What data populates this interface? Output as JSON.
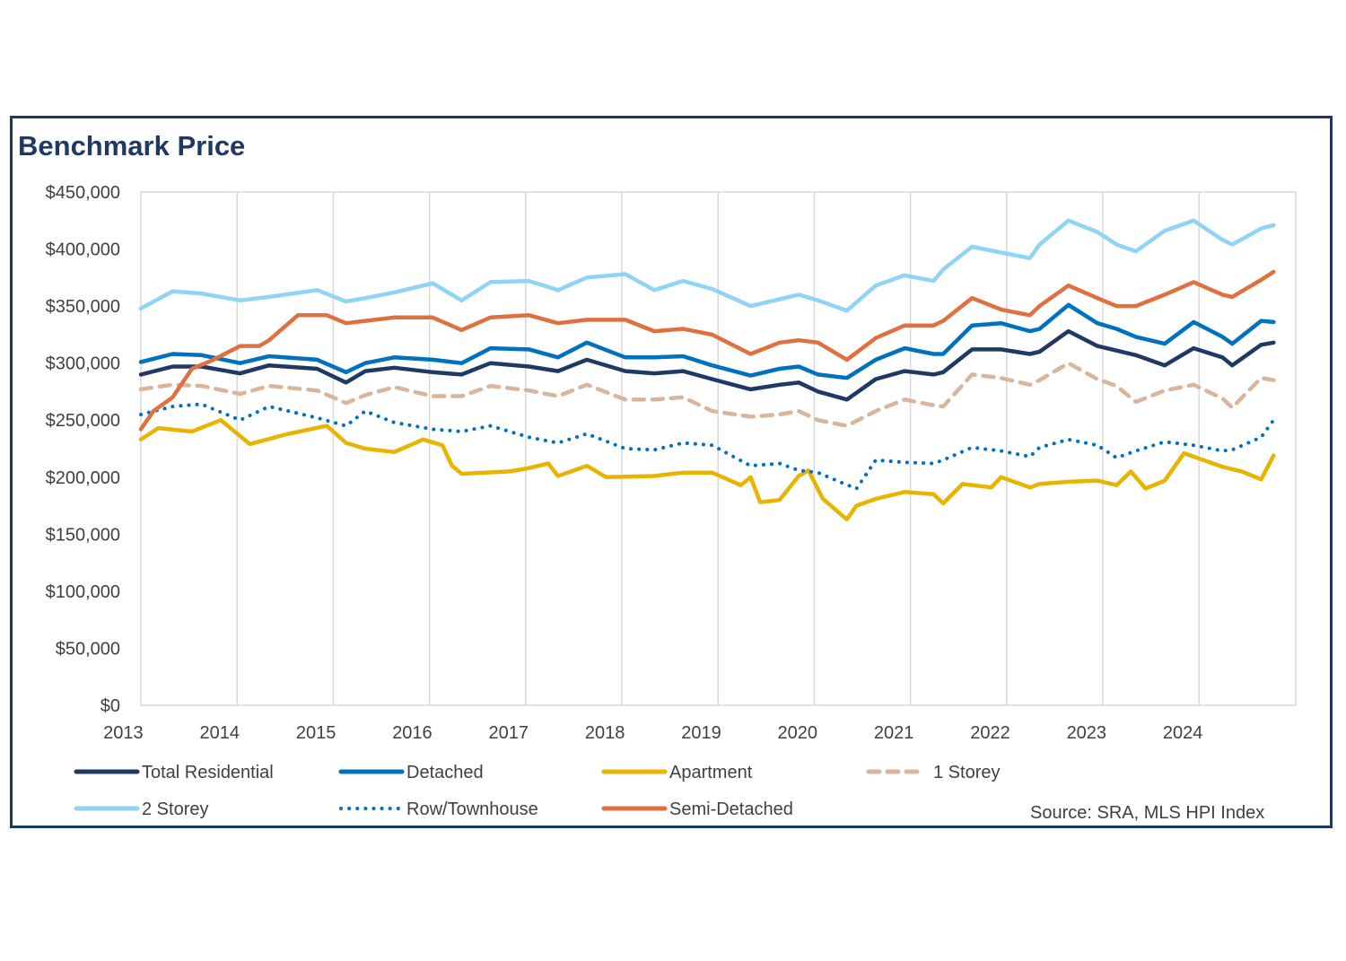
{
  "chart_data": {
    "type": "line",
    "title": "Benchmark Price",
    "xlabel": "",
    "ylabel": "",
    "ylim": [
      0,
      450000
    ],
    "xlim": [
      2012.67,
      2024.66
    ],
    "y_ticks": [
      0,
      50000,
      100000,
      150000,
      200000,
      250000,
      300000,
      350000,
      400000,
      450000
    ],
    "y_tick_labels": [
      "$0",
      "$50,000",
      "$100,000",
      "$150,000",
      "$200,000",
      "$250,000",
      "$300,000",
      "$350,000",
      "$400,000",
      "$450,000"
    ],
    "x_tick_labels": [
      "2013",
      "2014",
      "2015",
      "2016",
      "2017",
      "2018",
      "2019",
      "2020",
      "2021",
      "2022",
      "2023",
      "2024"
    ],
    "x_tick_positions": [
      2013,
      2014,
      2015,
      2016,
      2017,
      2018,
      2019,
      2020,
      2021,
      2022,
      2023,
      2024
    ],
    "gridlines": "vertical at each year boundary",
    "legend_position": "bottom",
    "source": "Source: SRA, MLS HPI Index",
    "series": [
      {
        "name": "Total Residential",
        "color": "#1f3864",
        "style": "solid",
        "x": [
          2012.67,
          2013.0,
          2013.3,
          2013.7,
          2014.0,
          2014.5,
          2014.8,
          2015.0,
          2015.3,
          2015.7,
          2016.0,
          2016.3,
          2016.7,
          2017.0,
          2017.3,
          2017.7,
          2018.0,
          2018.3,
          2018.6,
          2019.0,
          2019.3,
          2019.5,
          2019.7,
          2020.0,
          2020.3,
          2020.6,
          2020.9,
          2021.0,
          2021.3,
          2021.6,
          2021.9,
          2022.0,
          2022.3,
          2022.6,
          2022.8,
          2023.0,
          2023.3,
          2023.6,
          2023.9,
          2024.0,
          2024.3,
          2024.43
        ],
        "values": [
          290000,
          297000,
          297000,
          291000,
          298000,
          295000,
          283000,
          293000,
          296000,
          292000,
          290000,
          300000,
          297000,
          293000,
          303000,
          293000,
          291000,
          293000,
          286000,
          277000,
          281000,
          283000,
          275000,
          268000,
          286000,
          293000,
          290000,
          292000,
          312000,
          312000,
          308000,
          310000,
          328000,
          315000,
          311000,
          307000,
          298000,
          313000,
          305000,
          298000,
          316000,
          318000
        ]
      },
      {
        "name": "Detached",
        "color": "#0070c0",
        "style": "solid",
        "x": [
          2012.67,
          2013.0,
          2013.3,
          2013.7,
          2014.0,
          2014.5,
          2014.8,
          2015.0,
          2015.3,
          2015.7,
          2016.0,
          2016.3,
          2016.7,
          2017.0,
          2017.3,
          2017.7,
          2018.0,
          2018.3,
          2018.6,
          2019.0,
          2019.3,
          2019.5,
          2019.7,
          2020.0,
          2020.3,
          2020.6,
          2020.9,
          2021.0,
          2021.3,
          2021.6,
          2021.9,
          2022.0,
          2022.3,
          2022.6,
          2022.8,
          2023.0,
          2023.3,
          2023.6,
          2023.9,
          2024.0,
          2024.3,
          2024.43
        ],
        "values": [
          301000,
          308000,
          307000,
          300000,
          306000,
          303000,
          292000,
          300000,
          305000,
          303000,
          300000,
          313000,
          312000,
          305000,
          318000,
          305000,
          305000,
          306000,
          298000,
          289000,
          295000,
          297000,
          290000,
          287000,
          303000,
          313000,
          308000,
          308000,
          333000,
          335000,
          328000,
          330000,
          351000,
          335000,
          330000,
          323000,
          317000,
          336000,
          323000,
          317000,
          337000,
          336000
        ]
      },
      {
        "name": "Apartment",
        "color": "#e8b400",
        "style": "solid",
        "x": [
          2012.67,
          2012.85,
          2013.2,
          2013.5,
          2013.8,
          2014.2,
          2014.6,
          2014.8,
          2015.0,
          2015.3,
          2015.6,
          2015.8,
          2015.9,
          2016.0,
          2016.5,
          2016.7,
          2016.9,
          2017.0,
          2017.3,
          2017.5,
          2018.0,
          2018.3,
          2018.6,
          2018.9,
          2019.0,
          2019.1,
          2019.3,
          2019.5,
          2019.6,
          2019.75,
          2020.0,
          2020.1,
          2020.3,
          2020.6,
          2020.9,
          2021.0,
          2021.2,
          2021.5,
          2021.6,
          2021.9,
          2022.0,
          2022.3,
          2022.6,
          2022.8,
          2022.95,
          2023.1,
          2023.3,
          2023.5,
          2023.9,
          2024.1,
          2024.3,
          2024.43
        ],
        "values": [
          233000,
          243000,
          240000,
          250000,
          229000,
          238000,
          245000,
          230000,
          225000,
          222000,
          233000,
          228000,
          210000,
          203000,
          205000,
          208000,
          212000,
          201000,
          210000,
          200000,
          201000,
          204000,
          204000,
          193000,
          200000,
          178000,
          180000,
          201000,
          206000,
          181000,
          163000,
          175000,
          181000,
          187000,
          185000,
          177000,
          194000,
          191000,
          200000,
          191000,
          194000,
          196000,
          197000,
          193000,
          205000,
          190000,
          197000,
          221000,
          209000,
          205000,
          198000,
          219000
        ]
      },
      {
        "name": "1 Storey",
        "color": "#d9b59d",
        "style": "dashed",
        "x": [
          2012.67,
          2013.0,
          2013.3,
          2013.7,
          2014.0,
          2014.5,
          2014.8,
          2015.0,
          2015.3,
          2015.7,
          2016.0,
          2016.3,
          2016.7,
          2017.0,
          2017.3,
          2017.7,
          2018.0,
          2018.3,
          2018.6,
          2019.0,
          2019.3,
          2019.5,
          2019.7,
          2020.0,
          2020.3,
          2020.6,
          2020.9,
          2021.0,
          2021.3,
          2021.6,
          2021.9,
          2022.0,
          2022.3,
          2022.6,
          2022.8,
          2023.0,
          2023.3,
          2023.6,
          2023.9,
          2024.0,
          2024.3,
          2024.43
        ],
        "values": [
          277000,
          281000,
          280000,
          273000,
          280000,
          276000,
          265000,
          272000,
          279000,
          271000,
          271000,
          280000,
          276000,
          271000,
          281000,
          268000,
          268000,
          270000,
          258000,
          253000,
          255000,
          258000,
          250000,
          245000,
          258000,
          268000,
          263000,
          262000,
          290000,
          287000,
          281000,
          285000,
          300000,
          286000,
          280000,
          266000,
          276000,
          281000,
          269000,
          261000,
          287000,
          285000
        ]
      },
      {
        "name": "2 Storey",
        "color": "#8fd3f5",
        "style": "solid",
        "x": [
          2012.67,
          2013.0,
          2013.3,
          2013.7,
          2014.0,
          2014.5,
          2014.8,
          2015.0,
          2015.3,
          2015.7,
          2016.0,
          2016.3,
          2016.7,
          2017.0,
          2017.3,
          2017.7,
          2018.0,
          2018.3,
          2018.6,
          2019.0,
          2019.3,
          2019.5,
          2019.7,
          2020.0,
          2020.3,
          2020.6,
          2020.9,
          2021.0,
          2021.3,
          2021.6,
          2021.9,
          2022.0,
          2022.3,
          2022.6,
          2022.8,
          2023.0,
          2023.3,
          2023.6,
          2023.9,
          2024.0,
          2024.3,
          2024.43
        ],
        "values": [
          348000,
          363000,
          361000,
          355000,
          358000,
          364000,
          354000,
          357000,
          362000,
          370000,
          355000,
          371000,
          372000,
          364000,
          375000,
          378000,
          364000,
          372000,
          365000,
          350000,
          356000,
          360000,
          355000,
          346000,
          368000,
          377000,
          372000,
          382000,
          402000,
          397000,
          392000,
          404000,
          425000,
          415000,
          404000,
          398000,
          416000,
          425000,
          408000,
          404000,
          418000,
          421000
        ]
      },
      {
        "name": "Row/Townhouse",
        "color": "#0070c0",
        "style": "dotted",
        "x": [
          2012.67,
          2013.0,
          2013.3,
          2013.7,
          2014.0,
          2014.5,
          2014.8,
          2015.0,
          2015.3,
          2015.7,
          2016.0,
          2016.3,
          2016.7,
          2017.0,
          2017.3,
          2017.7,
          2018.0,
          2018.3,
          2018.6,
          2019.0,
          2019.3,
          2019.5,
          2019.7,
          2019.95,
          2020.1,
          2020.3,
          2020.6,
          2020.9,
          2021.0,
          2021.3,
          2021.6,
          2021.9,
          2022.0,
          2022.3,
          2022.6,
          2022.8,
          2023.0,
          2023.3,
          2023.6,
          2023.9,
          2024.0,
          2024.3,
          2024.43
        ],
        "values": [
          255000,
          262000,
          264000,
          250000,
          262000,
          252000,
          245000,
          258000,
          248000,
          242000,
          240000,
          245000,
          235000,
          230000,
          238000,
          225000,
          224000,
          230000,
          228000,
          210000,
          212000,
          206000,
          204000,
          195000,
          190000,
          215000,
          213000,
          212000,
          215000,
          226000,
          223000,
          218000,
          226000,
          233000,
          228000,
          217000,
          223000,
          231000,
          228000,
          223000,
          224000,
          235000,
          250000
        ]
      },
      {
        "name": "Semi-Detached",
        "color": "#e07040",
        "style": "solid",
        "x": [
          2012.67,
          2012.8,
          2013.0,
          2013.2,
          2013.4,
          2013.7,
          2013.9,
          2014.0,
          2014.3,
          2014.6,
          2014.8,
          2015.0,
          2015.3,
          2015.7,
          2016.0,
          2016.3,
          2016.7,
          2017.0,
          2017.3,
          2017.7,
          2018.0,
          2018.3,
          2018.6,
          2019.0,
          2019.3,
          2019.5,
          2019.7,
          2020.0,
          2020.3,
          2020.6,
          2020.9,
          2021.0,
          2021.3,
          2021.6,
          2021.9,
          2022.0,
          2022.3,
          2022.6,
          2022.8,
          2023.0,
          2023.3,
          2023.6,
          2023.9,
          2024.0,
          2024.3,
          2024.43
        ],
        "values": [
          242000,
          258000,
          270000,
          295000,
          302000,
          315000,
          315000,
          320000,
          342000,
          342000,
          335000,
          337000,
          340000,
          340000,
          329000,
          340000,
          342000,
          335000,
          338000,
          338000,
          328000,
          330000,
          325000,
          308000,
          318000,
          320000,
          318000,
          303000,
          322000,
          333000,
          333000,
          337000,
          357000,
          347000,
          342000,
          350000,
          368000,
          357000,
          350000,
          350000,
          360000,
          371000,
          360000,
          358000,
          373000,
          380000
        ]
      }
    ]
  }
}
